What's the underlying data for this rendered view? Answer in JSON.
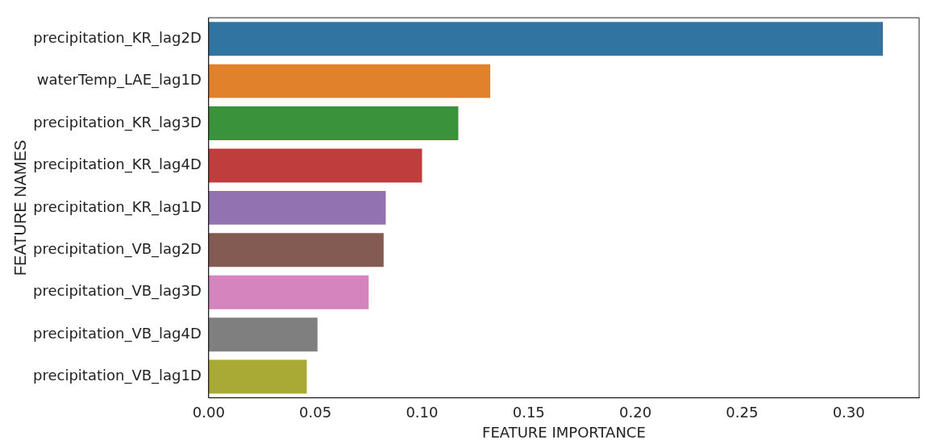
{
  "chart_data": {
    "type": "bar",
    "orientation": "horizontal",
    "xlabel": "FEATURE IMPORTANCE",
    "ylabel": "FEATURE NAMES",
    "categories": [
      "precipitation_KR_lag2D",
      "waterTemp_LAE_lag1D",
      "precipitation_KR_lag3D",
      "precipitation_KR_lag4D",
      "precipitation_KR_lag1D",
      "precipitation_VB_lag2D",
      "precipitation_VB_lag3D",
      "precipitation_VB_lag4D",
      "precipitation_VB_lag1D"
    ],
    "values": [
      0.316,
      0.132,
      0.117,
      0.1,
      0.083,
      0.082,
      0.075,
      0.051,
      0.046
    ],
    "colors": [
      "#3274a1",
      "#e1812c",
      "#3a923a",
      "#c03d3e",
      "#9372b2",
      "#845b53",
      "#d684bd",
      "#7f7f7f",
      "#a9aa35"
    ],
    "xlim": [
      0,
      0.333
    ],
    "xticks": [
      {
        "value": 0,
        "label": "0.00"
      },
      {
        "value": 0.05,
        "label": "0.05"
      },
      {
        "value": 0.1,
        "label": "0.10"
      },
      {
        "value": 0.15,
        "label": "0.15"
      },
      {
        "value": 0.2,
        "label": "0.20"
      },
      {
        "value": 0.25,
        "label": "0.25"
      },
      {
        "value": 0.3,
        "label": "0.30"
      }
    ],
    "grid": false,
    "legend": false
  }
}
